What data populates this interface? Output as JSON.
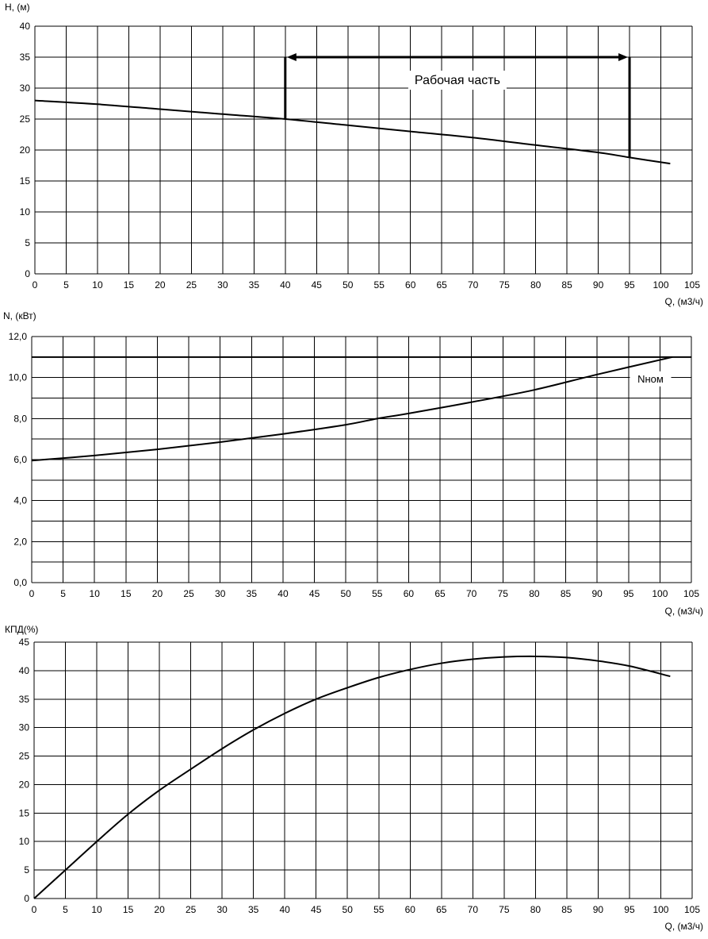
{
  "chart_data": [
    {
      "type": "line",
      "ylabel": "H, (м)",
      "xlabel": "Q, (м3/ч)",
      "xlim": [
        0,
        105
      ],
      "ylim": [
        0,
        40
      ],
      "x_ticks": [
        0,
        5,
        10,
        15,
        20,
        25,
        30,
        35,
        40,
        45,
        50,
        55,
        60,
        65,
        70,
        75,
        80,
        85,
        90,
        95,
        100,
        105
      ],
      "y_ticks": [
        "0",
        "5",
        "10",
        "15",
        "20",
        "25",
        "30",
        "35",
        "40"
      ],
      "grid": true,
      "series": [
        {
          "x": [
            0,
            10,
            20,
            30,
            40,
            50,
            60,
            70,
            80,
            90,
            95,
            101.5
          ],
          "y": [
            28.0,
            27.4,
            26.6,
            25.8,
            25.0,
            24.0,
            23.0,
            22.0,
            20.8,
            19.6,
            18.8,
            17.8
          ]
        }
      ],
      "annotations": [
        {
          "type": "range-arrow",
          "text": "Рабочая часть",
          "x_from": 40,
          "x_to": 95,
          "y_level": 35,
          "marker_from_y": 25.0,
          "marker_to_y": 18.8
        }
      ]
    },
    {
      "type": "line",
      "ylabel": "N, (кВт)",
      "xlabel": "Q, (м3/ч)",
      "xlim": [
        0,
        105
      ],
      "ylim": [
        0,
        12
      ],
      "x_ticks": [
        0,
        5,
        10,
        15,
        20,
        25,
        30,
        35,
        40,
        45,
        50,
        55,
        60,
        65,
        70,
        75,
        80,
        85,
        90,
        95,
        100,
        105
      ],
      "y_ticks": [
        "0,0",
        "2,0",
        "4,0",
        "6,0",
        "8,0",
        "10,0",
        "12,0"
      ],
      "y_minor_step": 1,
      "grid": true,
      "series": [
        {
          "x": [
            0,
            10,
            20,
            30,
            40,
            50,
            55,
            60,
            70,
            80,
            90,
            102
          ],
          "y": [
            5.95,
            6.2,
            6.5,
            6.85,
            7.25,
            7.7,
            8.0,
            8.25,
            8.8,
            9.4,
            10.15,
            11.0
          ]
        }
      ],
      "reference_line": {
        "y": 11.0,
        "label": "Nном"
      }
    },
    {
      "type": "line",
      "ylabel": "КПД(%)",
      "xlabel": "Q, (м3/ч)",
      "xlim": [
        0,
        105
      ],
      "ylim": [
        0,
        45
      ],
      "x_ticks": [
        0,
        5,
        10,
        15,
        20,
        25,
        30,
        35,
        40,
        45,
        50,
        55,
        60,
        65,
        70,
        75,
        80,
        85,
        90,
        95,
        100,
        105
      ],
      "y_ticks": [
        "0",
        "5",
        "10",
        "15",
        "20",
        "25",
        "30",
        "35",
        "40",
        "45"
      ],
      "grid": true,
      "series": [
        {
          "x": [
            0,
            5,
            10,
            15,
            20,
            25,
            30,
            35,
            40,
            45,
            50,
            55,
            60,
            65,
            70,
            75,
            80,
            85,
            90,
            95,
            101.5
          ],
          "y": [
            0,
            5.0,
            10.0,
            14.8,
            19.0,
            22.7,
            26.3,
            29.6,
            32.5,
            35.0,
            37.0,
            38.8,
            40.2,
            41.3,
            42.0,
            42.4,
            42.5,
            42.3,
            41.7,
            40.8,
            39.0
          ]
        }
      ]
    }
  ]
}
